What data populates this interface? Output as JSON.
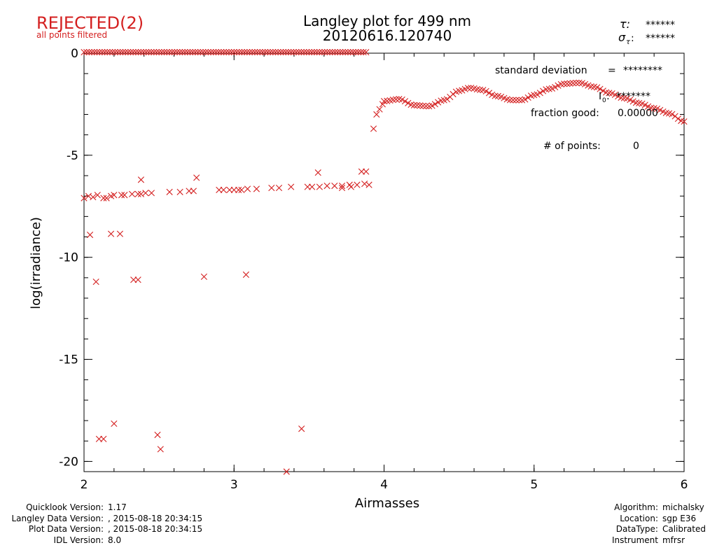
{
  "header": {
    "status": "REJECTED(2)",
    "status_note": "all points filtered",
    "title_line1": "Langley plot for 499 nm",
    "title_line2": "20120616.120740",
    "tau_symbol": "τ:",
    "tau_value": "******",
    "sigma_symbol": "σ",
    "sigma_sub": "τ",
    "sigma_colon": ":",
    "sigma_value": "******"
  },
  "stats": {
    "std_label": "standard deviation",
    "std_eq": "=",
    "std_value": "********",
    "i0_label": "I",
    "i0_sub": "0",
    "i0_colon": ":",
    "i0_value": "*******",
    "fraction_label": "fraction good:",
    "fraction_value": "0.00000",
    "npoints_label": "# of points:",
    "npoints_value": "0"
  },
  "footer_left": [
    {
      "label": "Quicklook Version:",
      "value": "1.17"
    },
    {
      "label": "Langley Data Version:",
      "value": ", 2015-08-18 20:34:15"
    },
    {
      "label": "Plot Data Version:",
      "value": ", 2015-08-18 20:34:15"
    },
    {
      "label": "IDL Version:",
      "value": "8.0"
    }
  ],
  "footer_right": [
    {
      "label": "Algorithm:",
      "value": "michalsky"
    },
    {
      "label": "Location:",
      "value": "sgp E36"
    },
    {
      "label": "DataType:",
      "value": "Calibrated"
    },
    {
      "label": "Instrument",
      "value": "mfrsr"
    }
  ],
  "colors": {
    "points": "#d42020",
    "axes": "#000000",
    "background": "#ffffff"
  },
  "chart_data": {
    "type": "scatter",
    "xlabel": "Airmasses",
    "ylabel": "log(irradiance)",
    "xlim": [
      2,
      6
    ],
    "ylim": [
      -20.5,
      0
    ],
    "xticks": [
      2,
      3,
      4,
      5,
      6
    ],
    "yticks": [
      0,
      -5,
      -10,
      -15,
      -20
    ],
    "marker": "x",
    "top_row": {
      "y": 0.05,
      "x_start": 2.0,
      "x_end": 3.88,
      "count": 110
    },
    "low_band": [
      [
        2.0,
        -7.1
      ],
      [
        2.03,
        -7.0
      ],
      [
        2.06,
        -7.05
      ],
      [
        2.09,
        -6.95
      ],
      [
        2.13,
        -7.1
      ],
      [
        2.15,
        -7.1
      ],
      [
        2.18,
        -7.0
      ],
      [
        2.2,
        -6.95
      ],
      [
        2.25,
        -6.95
      ],
      [
        2.27,
        -6.95
      ],
      [
        2.32,
        -6.9
      ],
      [
        2.36,
        -6.9
      ],
      [
        2.38,
        -6.9
      ],
      [
        2.41,
        -6.85
      ],
      [
        2.45,
        -6.85
      ],
      [
        2.57,
        -6.8
      ],
      [
        2.64,
        -6.8
      ],
      [
        2.7,
        -6.75
      ],
      [
        2.73,
        -6.75
      ],
      [
        2.9,
        -6.7
      ],
      [
        2.93,
        -6.7
      ],
      [
        2.97,
        -6.7
      ],
      [
        3.0,
        -6.7
      ],
      [
        3.03,
        -6.7
      ],
      [
        3.05,
        -6.7
      ],
      [
        3.09,
        -6.65
      ],
      [
        3.15,
        -6.65
      ],
      [
        3.25,
        -6.6
      ],
      [
        3.3,
        -6.6
      ],
      [
        3.38,
        -6.55
      ],
      [
        3.49,
        -6.55
      ],
      [
        3.52,
        -6.55
      ],
      [
        3.57,
        -6.55
      ],
      [
        3.62,
        -6.5
      ],
      [
        3.67,
        -6.5
      ],
      [
        3.72,
        -6.5
      ],
      [
        3.77,
        -6.45
      ],
      [
        3.82,
        -6.45
      ],
      [
        3.87,
        -6.4
      ],
      [
        3.9,
        -6.45
      ]
    ],
    "outliers": [
      [
        2.04,
        -8.9
      ],
      [
        2.08,
        -11.2
      ],
      [
        2.1,
        -18.9
      ],
      [
        2.13,
        -18.9
      ],
      [
        2.18,
        -8.85
      ],
      [
        2.2,
        -18.15
      ],
      [
        2.24,
        -8.85
      ],
      [
        2.33,
        -11.1
      ],
      [
        2.36,
        -11.1
      ],
      [
        2.38,
        -6.2
      ],
      [
        2.49,
        -18.7
      ],
      [
        2.51,
        -19.4
      ],
      [
        2.75,
        -6.1
      ],
      [
        2.8,
        -10.95
      ],
      [
        3.08,
        -10.85
      ],
      [
        3.35,
        -20.5
      ],
      [
        3.45,
        -18.4
      ],
      [
        3.56,
        -5.85
      ],
      [
        3.72,
        -6.6
      ],
      [
        3.78,
        -6.55
      ],
      [
        3.85,
        -5.8
      ],
      [
        3.88,
        -5.8
      ]
    ],
    "rise": [
      [
        3.93,
        -3.7
      ],
      [
        3.95,
        -3.0
      ],
      [
        3.97,
        -2.75
      ],
      [
        3.99,
        -2.5
      ]
    ],
    "upper_curve": [
      [
        4.0,
        -2.35
      ],
      [
        4.1,
        -2.25
      ],
      [
        4.2,
        -2.55
      ],
      [
        4.3,
        -2.6
      ],
      [
        4.4,
        -2.3
      ],
      [
        4.5,
        -1.85
      ],
      [
        4.57,
        -1.7
      ],
      [
        4.65,
        -1.8
      ],
      [
        4.75,
        -2.1
      ],
      [
        4.85,
        -2.3
      ],
      [
        4.92,
        -2.3
      ],
      [
        5.0,
        -2.05
      ],
      [
        5.1,
        -1.75
      ],
      [
        5.2,
        -1.5
      ],
      [
        5.3,
        -1.45
      ],
      [
        5.4,
        -1.65
      ],
      [
        5.5,
        -1.95
      ],
      [
        5.6,
        -2.2
      ],
      [
        5.7,
        -2.45
      ],
      [
        5.8,
        -2.7
      ],
      [
        5.9,
        -2.95
      ],
      [
        6.0,
        -3.35
      ]
    ]
  }
}
